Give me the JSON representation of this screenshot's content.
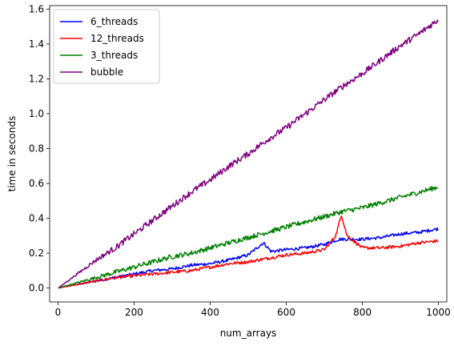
{
  "chart_data": {
    "type": "line",
    "title": "",
    "xlabel": "num_arrays",
    "ylabel": "time in seconds",
    "xlim": [
      -22,
      1022
    ],
    "ylim": [
      -0.08,
      1.62
    ],
    "xticks": [
      0,
      200,
      400,
      600,
      800,
      1000
    ],
    "xtick_labels": [
      "0",
      "200",
      "400",
      "600",
      "800",
      "1000"
    ],
    "yticks": [
      0.0,
      0.2,
      0.4,
      0.6,
      0.8,
      1.0,
      1.2,
      1.4,
      1.6
    ],
    "ytick_labels": [
      "0.0",
      "0.2",
      "0.4",
      "0.6",
      "0.8",
      "1.0",
      "1.2",
      "1.4",
      "1.6"
    ],
    "grid": false,
    "legend_position": "top-left",
    "series": [
      {
        "name": "6_threads",
        "color": "#0000ff",
        "x": [
          1,
          50,
          100,
          150,
          200,
          250,
          300,
          350,
          400,
          450,
          500,
          540,
          560,
          600,
          650,
          700,
          740,
          760,
          800,
          850,
          900,
          950,
          1000
        ],
        "y": [
          0.0,
          0.02,
          0.04,
          0.06,
          0.08,
          0.1,
          0.11,
          0.13,
          0.14,
          0.16,
          0.19,
          0.26,
          0.21,
          0.22,
          0.23,
          0.25,
          0.28,
          0.28,
          0.28,
          0.29,
          0.31,
          0.32,
          0.34
        ]
      },
      {
        "name": "12_threads",
        "color": "#ff0000",
        "x": [
          1,
          50,
          100,
          150,
          200,
          250,
          300,
          350,
          400,
          450,
          500,
          550,
          600,
          650,
          700,
          730,
          745,
          760,
          800,
          850,
          900,
          950,
          1000
        ],
        "y": [
          0.0,
          0.02,
          0.04,
          0.06,
          0.07,
          0.08,
          0.09,
          0.1,
          0.12,
          0.14,
          0.15,
          0.17,
          0.19,
          0.2,
          0.22,
          0.3,
          0.42,
          0.3,
          0.23,
          0.23,
          0.24,
          0.26,
          0.27
        ]
      },
      {
        "name": "3_threads",
        "color": "#008000",
        "x": [
          1,
          50,
          100,
          150,
          200,
          250,
          300,
          350,
          400,
          450,
          500,
          550,
          600,
          650,
          700,
          750,
          800,
          850,
          900,
          950,
          1000
        ],
        "y": [
          0.0,
          0.03,
          0.06,
          0.09,
          0.12,
          0.15,
          0.18,
          0.2,
          0.23,
          0.26,
          0.29,
          0.32,
          0.35,
          0.38,
          0.41,
          0.44,
          0.46,
          0.49,
          0.52,
          0.55,
          0.58
        ]
      },
      {
        "name": "bubble",
        "color": "#800080",
        "x": [
          1,
          50,
          100,
          150,
          200,
          250,
          300,
          350,
          400,
          450,
          500,
          550,
          600,
          650,
          700,
          750,
          800,
          850,
          900,
          950,
          1000
        ],
        "y": [
          0.0,
          0.08,
          0.16,
          0.23,
          0.31,
          0.39,
          0.47,
          0.55,
          0.62,
          0.7,
          0.77,
          0.85,
          0.92,
          1.0,
          1.08,
          1.16,
          1.23,
          1.31,
          1.39,
          1.46,
          1.54
        ]
      }
    ]
  }
}
